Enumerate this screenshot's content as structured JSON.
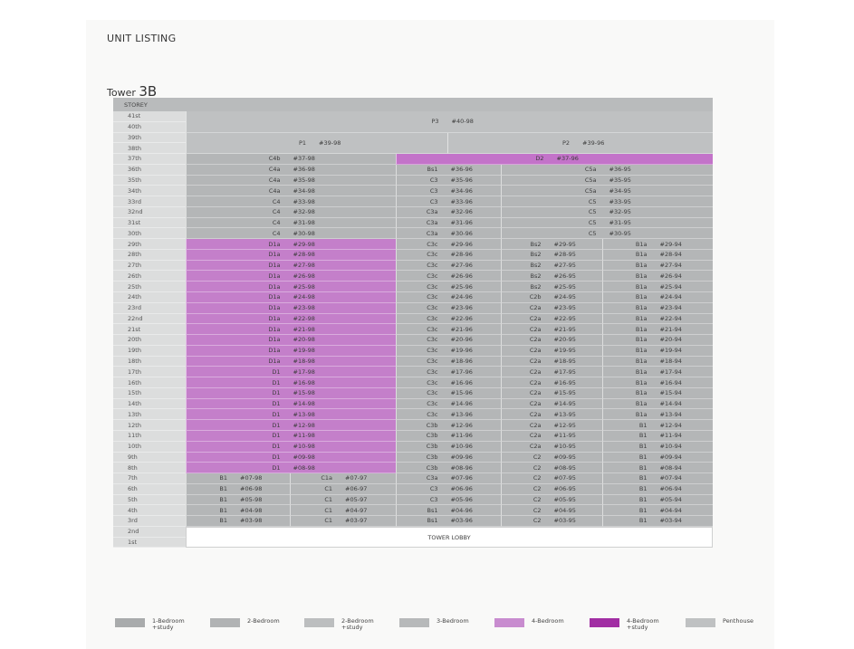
{
  "page_title": "UNIT LISTING",
  "tower": {
    "prefix": "Tower",
    "name": "3B"
  },
  "table_header": "STOREY",
  "colors": {
    "grey": "#b4b6b7",
    "grey_light": "#bfc1c2",
    "four_bedroom": "#c47fca",
    "four_bedroom_study": "#a12ea3",
    "storey_column": "#dcdddd"
  },
  "storeys": [
    "41st",
    "40th",
    "39th",
    "38th",
    "37th",
    "36th",
    "35th",
    "34th",
    "33rd",
    "32nd",
    "31st",
    "30th",
    "29th",
    "28th",
    "27th",
    "26th",
    "25th",
    "24th",
    "23rd",
    "22nd",
    "21st",
    "20th",
    "19th",
    "18th",
    "17th",
    "16th",
    "15th",
    "14th",
    "13th",
    "12th",
    "11th",
    "10th",
    "9th",
    "8th",
    "7th",
    "6th",
    "5th",
    "4th",
    "3rd",
    "2nd",
    "1st"
  ],
  "penthouses": [
    {
      "type": "P3",
      "unit": "#40-98",
      "storeys": [
        "41st",
        "40th"
      ]
    },
    {
      "type": "P1",
      "unit": "#39-98",
      "storeys": [
        "39th",
        "38th"
      ]
    },
    {
      "type": "P2",
      "unit": "#39-96",
      "storeys": [
        "39th",
        "38th"
      ]
    }
  ],
  "floors": [
    {
      "storey": "37th",
      "units": [
        {
          "type": "C4b",
          "unit": "#37-98"
        },
        {
          "type": "D2",
          "unit": "#37-96"
        }
      ]
    },
    {
      "storey": "36th",
      "units": [
        {
          "type": "C4a",
          "unit": "#36-98"
        },
        {
          "type": "Bs1",
          "unit": "#36-96"
        },
        {
          "type": "C5a",
          "unit": "#36-95"
        }
      ]
    },
    {
      "storey": "35th",
      "units": [
        {
          "type": "C4a",
          "unit": "#35-98"
        },
        {
          "type": "C3",
          "unit": "#35-96"
        },
        {
          "type": "C5a",
          "unit": "#35-95"
        }
      ]
    },
    {
      "storey": "34th",
      "units": [
        {
          "type": "C4a",
          "unit": "#34-98"
        },
        {
          "type": "C3",
          "unit": "#34-96"
        },
        {
          "type": "C5a",
          "unit": "#34-95"
        }
      ]
    },
    {
      "storey": "33rd",
      "units": [
        {
          "type": "C4",
          "unit": "#33-98"
        },
        {
          "type": "C3",
          "unit": "#33-96"
        },
        {
          "type": "C5",
          "unit": "#33-95"
        }
      ]
    },
    {
      "storey": "32nd",
      "units": [
        {
          "type": "C4",
          "unit": "#32-98"
        },
        {
          "type": "C3a",
          "unit": "#32-96"
        },
        {
          "type": "C5",
          "unit": "#32-95"
        }
      ]
    },
    {
      "storey": "31st",
      "units": [
        {
          "type": "C4",
          "unit": "#31-98"
        },
        {
          "type": "C3a",
          "unit": "#31-96"
        },
        {
          "type": "C5",
          "unit": "#31-95"
        }
      ]
    },
    {
      "storey": "30th",
      "units": [
        {
          "type": "C4",
          "unit": "#30-98"
        },
        {
          "type": "C3a",
          "unit": "#30-96"
        },
        {
          "type": "C5",
          "unit": "#30-95"
        }
      ]
    },
    {
      "storey": "29th",
      "units": [
        {
          "type": "D1a",
          "unit": "#29-98"
        },
        {
          "type": "C3c",
          "unit": "#29-96"
        },
        {
          "type": "Bs2",
          "unit": "#29-95"
        },
        {
          "type": "B1a",
          "unit": "#29-94"
        }
      ]
    },
    {
      "storey": "28th",
      "units": [
        {
          "type": "D1a",
          "unit": "#28-98"
        },
        {
          "type": "C3c",
          "unit": "#28-96"
        },
        {
          "type": "Bs2",
          "unit": "#28-95"
        },
        {
          "type": "B1a",
          "unit": "#28-94"
        }
      ]
    },
    {
      "storey": "27th",
      "units": [
        {
          "type": "D1a",
          "unit": "#27-98"
        },
        {
          "type": "C3c",
          "unit": "#27-96"
        },
        {
          "type": "Bs2",
          "unit": "#27-95"
        },
        {
          "type": "B1a",
          "unit": "#27-94"
        }
      ]
    },
    {
      "storey": "26th",
      "units": [
        {
          "type": "D1a",
          "unit": "#26-98"
        },
        {
          "type": "C3c",
          "unit": "#26-96"
        },
        {
          "type": "Bs2",
          "unit": "#26-95"
        },
        {
          "type": "B1a",
          "unit": "#26-94"
        }
      ]
    },
    {
      "storey": "25th",
      "units": [
        {
          "type": "D1a",
          "unit": "#25-98"
        },
        {
          "type": "C3c",
          "unit": "#25-96"
        },
        {
          "type": "Bs2",
          "unit": "#25-95"
        },
        {
          "type": "B1a",
          "unit": "#25-94"
        }
      ]
    },
    {
      "storey": "24th",
      "units": [
        {
          "type": "D1a",
          "unit": "#24-98"
        },
        {
          "type": "C3c",
          "unit": "#24-96"
        },
        {
          "type": "C2b",
          "unit": "#24-95"
        },
        {
          "type": "B1a",
          "unit": "#24-94"
        }
      ]
    },
    {
      "storey": "23rd",
      "units": [
        {
          "type": "D1a",
          "unit": "#23-98"
        },
        {
          "type": "C3c",
          "unit": "#23-96"
        },
        {
          "type": "C2a",
          "unit": "#23-95"
        },
        {
          "type": "B1a",
          "unit": "#23-94"
        }
      ]
    },
    {
      "storey": "22nd",
      "units": [
        {
          "type": "D1a",
          "unit": "#22-98"
        },
        {
          "type": "C3c",
          "unit": "#22-96"
        },
        {
          "type": "C2a",
          "unit": "#22-95"
        },
        {
          "type": "B1a",
          "unit": "#22-94"
        }
      ]
    },
    {
      "storey": "21st",
      "units": [
        {
          "type": "D1a",
          "unit": "#21-98"
        },
        {
          "type": "C3c",
          "unit": "#21-96"
        },
        {
          "type": "C2a",
          "unit": "#21-95"
        },
        {
          "type": "B1a",
          "unit": "#21-94"
        }
      ]
    },
    {
      "storey": "20th",
      "units": [
        {
          "type": "D1a",
          "unit": "#20-98"
        },
        {
          "type": "C3c",
          "unit": "#20-96"
        },
        {
          "type": "C2a",
          "unit": "#20-95"
        },
        {
          "type": "B1a",
          "unit": "#20-94"
        }
      ]
    },
    {
      "storey": "19th",
      "units": [
        {
          "type": "D1a",
          "unit": "#19-98"
        },
        {
          "type": "C3c",
          "unit": "#19-96"
        },
        {
          "type": "C2a",
          "unit": "#19-95"
        },
        {
          "type": "B1a",
          "unit": "#19-94"
        }
      ]
    },
    {
      "storey": "18th",
      "units": [
        {
          "type": "D1a",
          "unit": "#18-98"
        },
        {
          "type": "C3c",
          "unit": "#18-96"
        },
        {
          "type": "C2a",
          "unit": "#18-95"
        },
        {
          "type": "B1a",
          "unit": "#18-94"
        }
      ]
    },
    {
      "storey": "17th",
      "units": [
        {
          "type": "D1",
          "unit": "#17-98"
        },
        {
          "type": "C3c",
          "unit": "#17-96"
        },
        {
          "type": "C2a",
          "unit": "#17-95"
        },
        {
          "type": "B1a",
          "unit": "#17-94"
        }
      ]
    },
    {
      "storey": "16th",
      "units": [
        {
          "type": "D1",
          "unit": "#16-98"
        },
        {
          "type": "C3c",
          "unit": "#16-96"
        },
        {
          "type": "C2a",
          "unit": "#16-95"
        },
        {
          "type": "B1a",
          "unit": "#16-94"
        }
      ]
    },
    {
      "storey": "15th",
      "units": [
        {
          "type": "D1",
          "unit": "#15-98"
        },
        {
          "type": "C3c",
          "unit": "#15-96"
        },
        {
          "type": "C2a",
          "unit": "#15-95"
        },
        {
          "type": "B1a",
          "unit": "#15-94"
        }
      ]
    },
    {
      "storey": "14th",
      "units": [
        {
          "type": "D1",
          "unit": "#14-98"
        },
        {
          "type": "C3c",
          "unit": "#14-96"
        },
        {
          "type": "C2a",
          "unit": "#14-95"
        },
        {
          "type": "B1a",
          "unit": "#14-94"
        }
      ]
    },
    {
      "storey": "13th",
      "units": [
        {
          "type": "D1",
          "unit": "#13-98"
        },
        {
          "type": "C3c",
          "unit": "#13-96"
        },
        {
          "type": "C2a",
          "unit": "#13-95"
        },
        {
          "type": "B1a",
          "unit": "#13-94"
        }
      ]
    },
    {
      "storey": "12th",
      "units": [
        {
          "type": "D1",
          "unit": "#12-98"
        },
        {
          "type": "C3b",
          "unit": "#12-96"
        },
        {
          "type": "C2a",
          "unit": "#12-95"
        },
        {
          "type": "B1",
          "unit": "#12-94"
        }
      ]
    },
    {
      "storey": "11th",
      "units": [
        {
          "type": "D1",
          "unit": "#11-98"
        },
        {
          "type": "C3b",
          "unit": "#11-96"
        },
        {
          "type": "C2a",
          "unit": "#11-95"
        },
        {
          "type": "B1",
          "unit": "#11-94"
        }
      ]
    },
    {
      "storey": "10th",
      "units": [
        {
          "type": "D1",
          "unit": "#10-98"
        },
        {
          "type": "C3b",
          "unit": "#10-96"
        },
        {
          "type": "C2a",
          "unit": "#10-95"
        },
        {
          "type": "B1",
          "unit": "#10-94"
        }
      ]
    },
    {
      "storey": "9th",
      "units": [
        {
          "type": "D1",
          "unit": "#09-98"
        },
        {
          "type": "C3b",
          "unit": "#09-96"
        },
        {
          "type": "C2",
          "unit": "#09-95"
        },
        {
          "type": "B1",
          "unit": "#09-94"
        }
      ]
    },
    {
      "storey": "8th",
      "units": [
        {
          "type": "D1",
          "unit": "#08-98"
        },
        {
          "type": "C3b",
          "unit": "#08-96"
        },
        {
          "type": "C2",
          "unit": "#08-95"
        },
        {
          "type": "B1",
          "unit": "#08-94"
        }
      ]
    },
    {
      "storey": "7th",
      "units": [
        {
          "type": "B1",
          "unit": "#07-98"
        },
        {
          "type": "C1a",
          "unit": "#07-97"
        },
        {
          "type": "C3a",
          "unit": "#07-96"
        },
        {
          "type": "C2",
          "unit": "#07-95"
        },
        {
          "type": "B1",
          "unit": "#07-94"
        }
      ]
    },
    {
      "storey": "6th",
      "units": [
        {
          "type": "B1",
          "unit": "#06-98"
        },
        {
          "type": "C1",
          "unit": "#06-97"
        },
        {
          "type": "C3",
          "unit": "#06-96"
        },
        {
          "type": "C2",
          "unit": "#06-95"
        },
        {
          "type": "B1",
          "unit": "#06-94"
        }
      ]
    },
    {
      "storey": "5th",
      "units": [
        {
          "type": "B1",
          "unit": "#05-98"
        },
        {
          "type": "C1",
          "unit": "#05-97"
        },
        {
          "type": "C3",
          "unit": "#05-96"
        },
        {
          "type": "C2",
          "unit": "#05-95"
        },
        {
          "type": "B1",
          "unit": "#05-94"
        }
      ]
    },
    {
      "storey": "4th",
      "units": [
        {
          "type": "B1",
          "unit": "#04-98"
        },
        {
          "type": "C1",
          "unit": "#04-97"
        },
        {
          "type": "Bs1",
          "unit": "#04-96"
        },
        {
          "type": "C2",
          "unit": "#04-95"
        },
        {
          "type": "B1",
          "unit": "#04-94"
        }
      ]
    },
    {
      "storey": "3rd",
      "units": [
        {
          "type": "B1",
          "unit": "#03-98"
        },
        {
          "type": "C1",
          "unit": "#03-97"
        },
        {
          "type": "Bs1",
          "unit": "#03-96"
        },
        {
          "type": "C2",
          "unit": "#03-95"
        },
        {
          "type": "B1",
          "unit": "#03-94"
        }
      ]
    }
  ],
  "lobby": {
    "label": "TOWER LOBBY",
    "storeys": [
      "2nd",
      "1st"
    ]
  },
  "legend": [
    {
      "label": "1-Bedroom\n+study",
      "color": "#a9abac"
    },
    {
      "label": "2-Bedroom",
      "color": "#b1b3b4"
    },
    {
      "label": "2-Bedroom\n+study",
      "color": "#bcbebf"
    },
    {
      "label": "3-Bedroom",
      "color": "#b7b9ba"
    },
    {
      "label": "4-Bedroom",
      "color": "#c88ccf"
    },
    {
      "label": "4-Bedroom\n+study",
      "color": "#a12ea3"
    },
    {
      "label": "Penthouse",
      "color": "#bfc1c2"
    }
  ]
}
